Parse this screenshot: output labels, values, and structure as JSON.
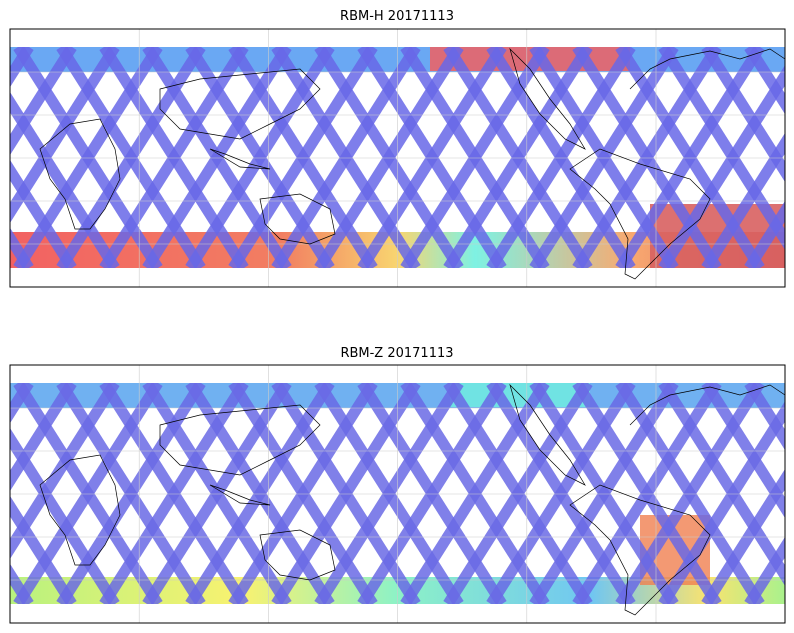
{
  "panels": [
    {
      "title": "RBM-H 20171113"
    },
    {
      "title": "RBM-Z 20171113"
    }
  ]
}
